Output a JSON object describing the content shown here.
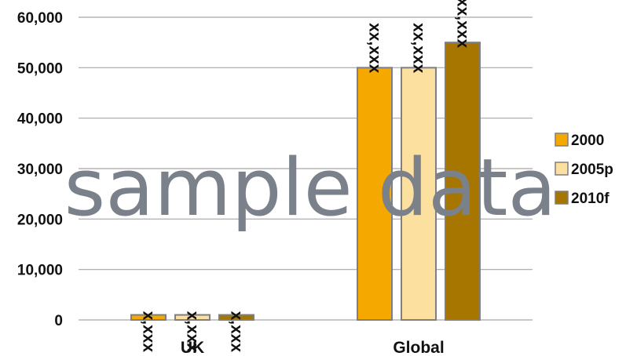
{
  "chart_data": {
    "type": "bar",
    "categories": [
      "UK",
      "Global"
    ],
    "series": [
      {
        "name": "2000",
        "values": [
          1000,
          50000
        ],
        "color": "#f5a800",
        "labels": [
          "x,xxx",
          "xx,xxx"
        ]
      },
      {
        "name": "2005p",
        "values": [
          1000,
          50000
        ],
        "color": "#fce0a0",
        "labels": [
          "x,xxx",
          "xx,xxx"
        ]
      },
      {
        "name": "2010f",
        "values": [
          1000,
          55000
        ],
        "color": "#a77600",
        "labels": [
          "x,xxx",
          "xx,xxx"
        ]
      }
    ],
    "yticks": [
      "0",
      "10,000",
      "20,000",
      "30,000",
      "40,000",
      "50,000",
      "60,000"
    ],
    "ylim": [
      0,
      60000
    ],
    "grid": true,
    "legend_position": "right",
    "bar_border_color": "#7f7f7f",
    "gridline_color": "#a6a6a6"
  },
  "watermark": "sample data"
}
